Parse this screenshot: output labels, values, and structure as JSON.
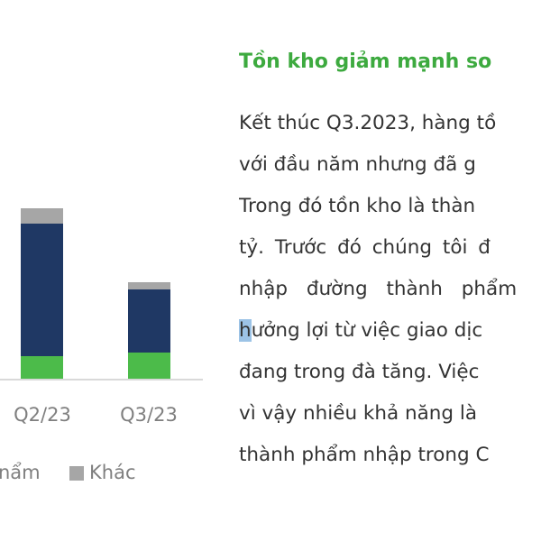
{
  "chart_data": {
    "type": "bar",
    "stacked": true,
    "categories": [
      "Q2/23",
      "Q3/23"
    ],
    "series": [
      {
        "name": "…thành phẩm",
        "legend_visible": "ẩm",
        "color": "#4cbb4a",
        "values": [
          25,
          29
        ]
      },
      {
        "color": "#1f3864",
        "values": [
          147,
          70
        ]
      },
      {
        "name": "Khác",
        "color": "#a6a6a6",
        "values": [
          17,
          8
        ]
      }
    ],
    "legend_placement": "bottom",
    "grid": false
  },
  "legend": {
    "partial_label": "nẩm",
    "other_label": "Khác"
  },
  "article": {
    "heading": "Tồn kho giảm mạnh so",
    "lines": [
      "Kết thúc Q3.2023, hàng tồ",
      "với đầu năm nhưng đã g",
      "Trong đó tồn kho là thàn",
      "tỷ. Trước đó chúng tôi đ",
      "nhập đường thành phẩm",
      "ưởng lợi từ việc giao dịc",
      "đang trong đà tăng. Việc",
      "vì vậy nhiều khả năng là",
      "thành phẩm nhập trong C"
    ],
    "highlight_char": "h"
  }
}
